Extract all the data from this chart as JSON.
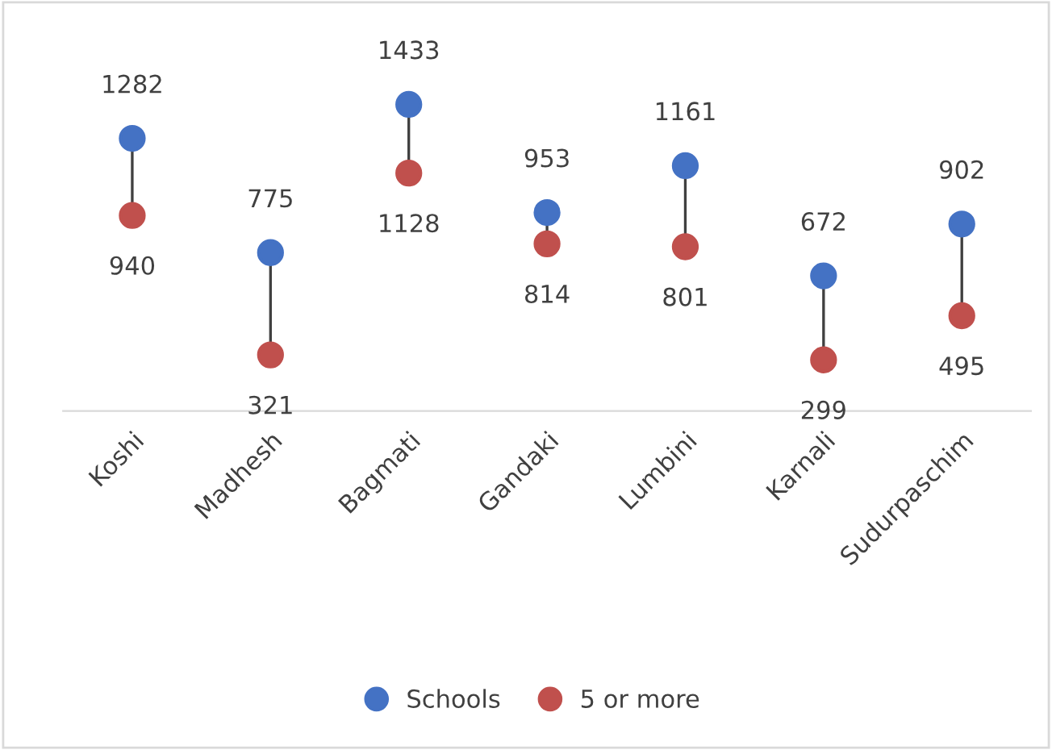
{
  "chart_data": {
    "type": "scatter",
    "categories": [
      "Koshi",
      "Madhesh",
      "Bagmati",
      "Gandaki",
      "Lumbini",
      "Karnali",
      "Sudurpaschim"
    ],
    "series": [
      {
        "name": "Schools",
        "color": "#4472c4",
        "values": [
          1282,
          775,
          1433,
          953,
          1161,
          672,
          902
        ]
      },
      {
        "name": "5 or more",
        "color": "#c0504d",
        "values": [
          940,
          321,
          1128,
          814,
          801,
          299,
          495
        ]
      }
    ],
    "data_labels": true,
    "legend": "bottom",
    "marker": "circle",
    "grid": false,
    "tick_labels": "x"
  }
}
